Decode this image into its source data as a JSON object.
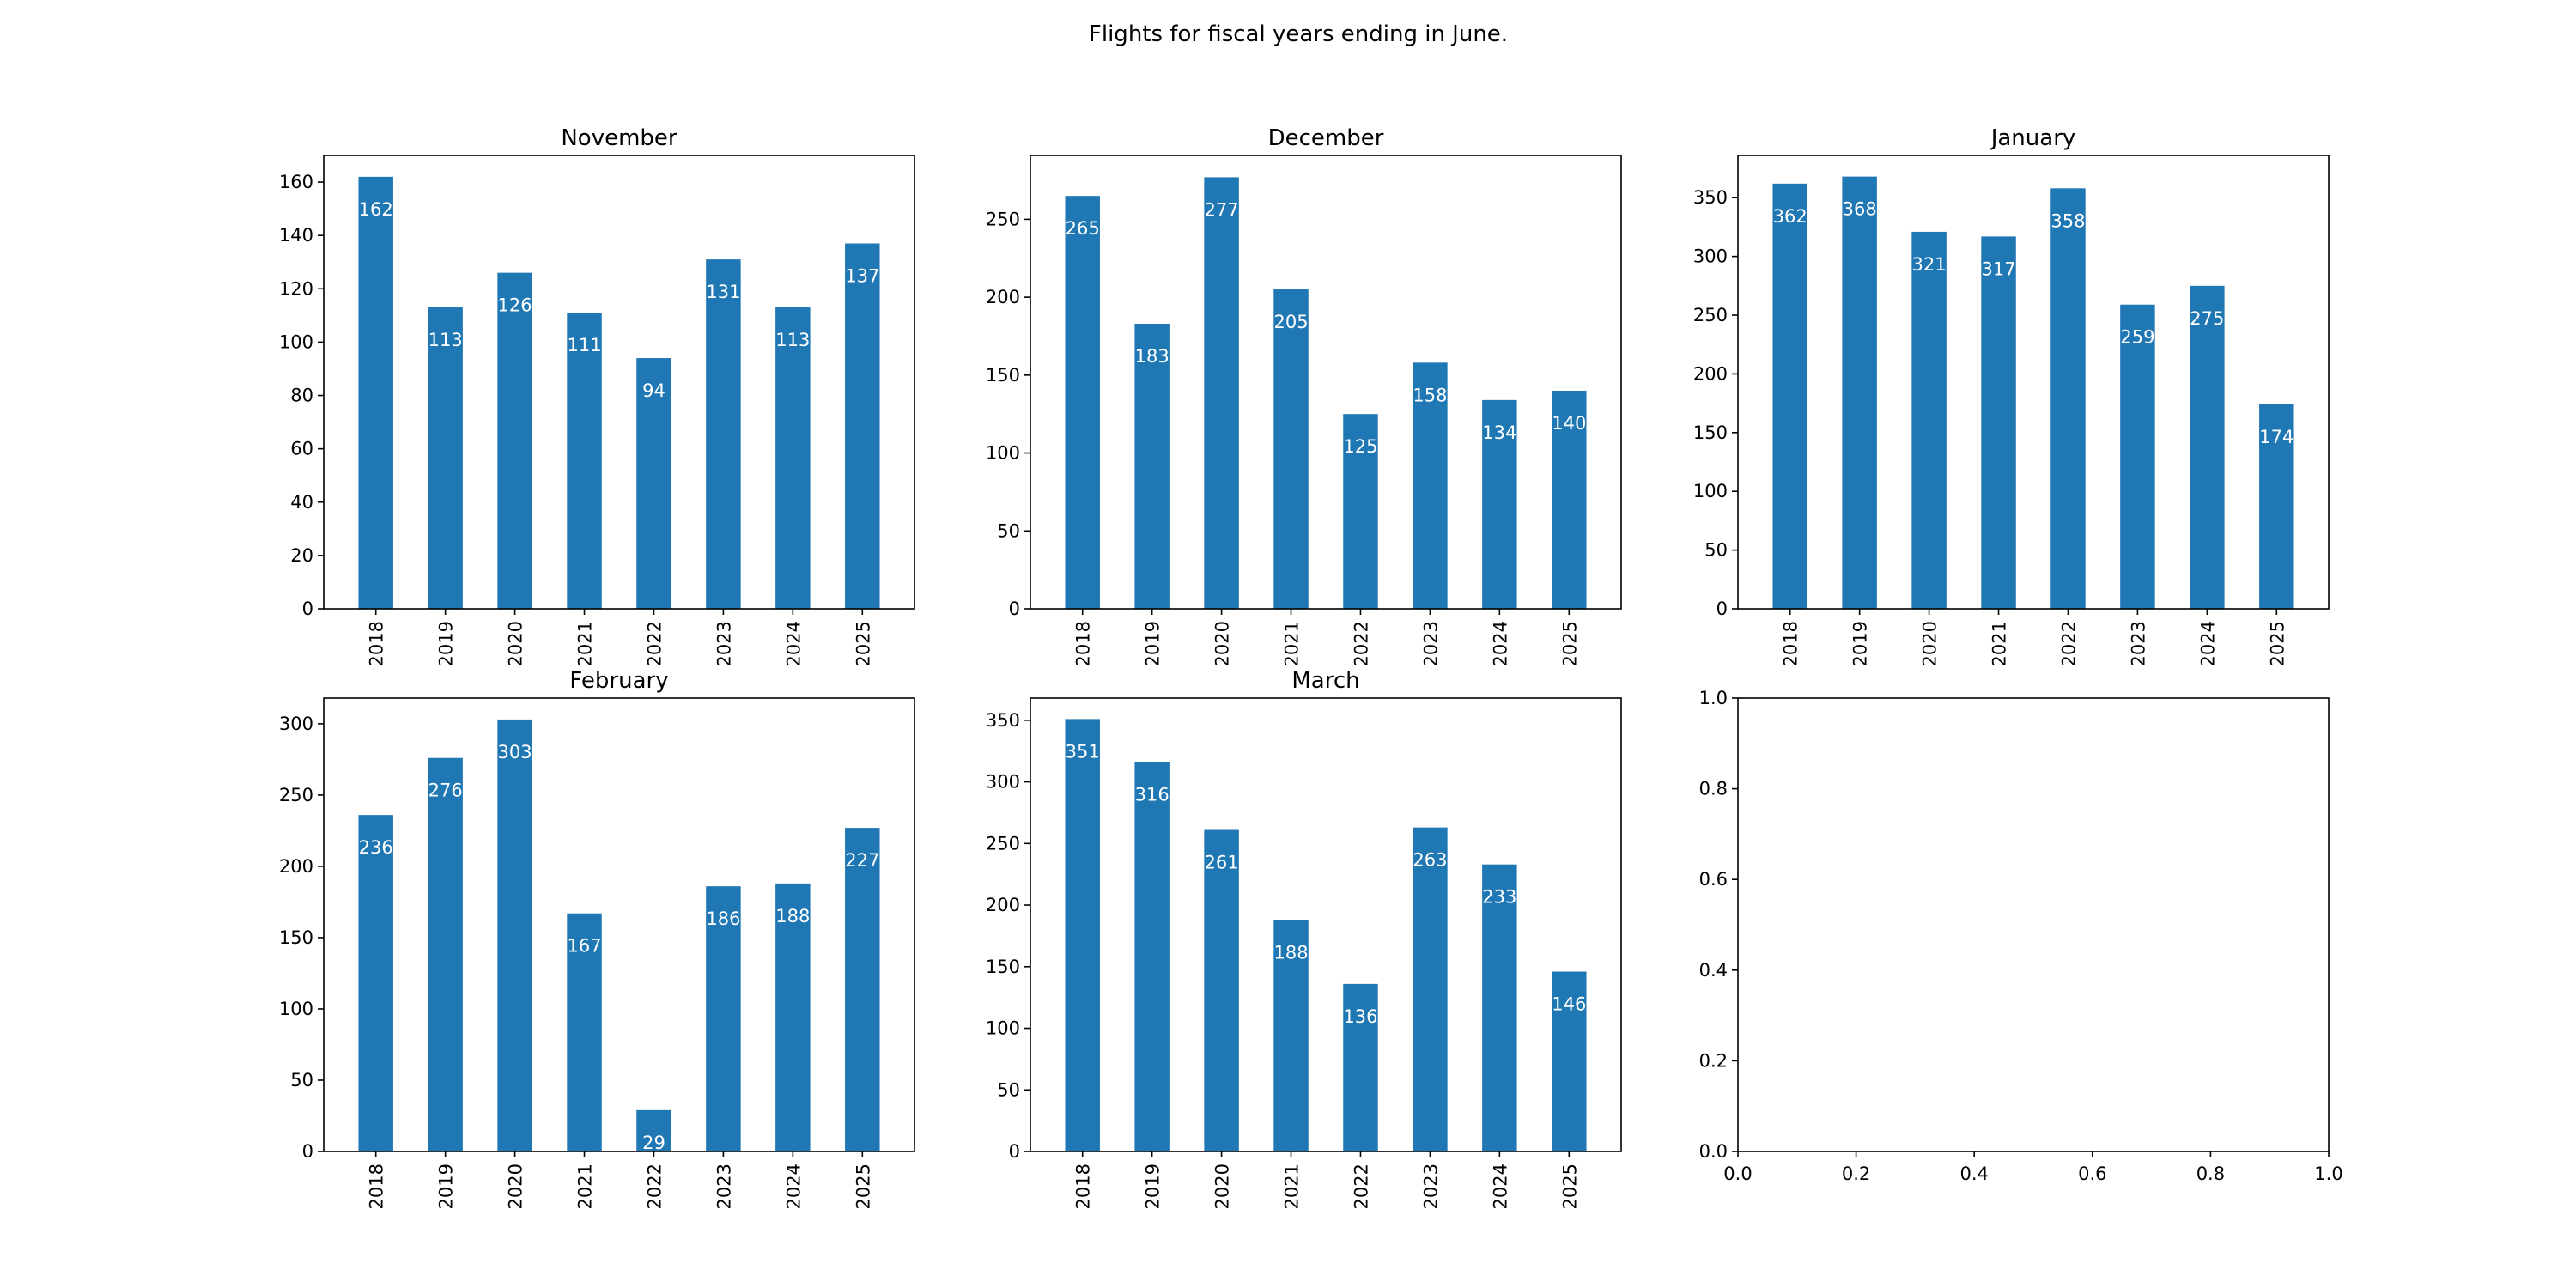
{
  "figure": {
    "title": "Flights for fiscal years ending in June."
  },
  "colors": {
    "bar": "#1f77b4",
    "bar_label": "#ffffff",
    "axis": "#000000",
    "background": "#ffffff"
  },
  "chart_data": [
    {
      "type": "bar",
      "title": "November",
      "categories": [
        "2018",
        "2019",
        "2020",
        "2021",
        "2022",
        "2023",
        "2024",
        "2025"
      ],
      "values": [
        162,
        113,
        126,
        111,
        94,
        131,
        113,
        137
      ],
      "ylim": [
        0,
        170
      ],
      "yticks": [
        0,
        20,
        40,
        60,
        80,
        100,
        120,
        140,
        160
      ],
      "xlabel": "",
      "ylabel": "",
      "grid": false
    },
    {
      "type": "bar",
      "title": "December",
      "categories": [
        "2018",
        "2019",
        "2020",
        "2021",
        "2022",
        "2023",
        "2024",
        "2025"
      ],
      "values": [
        265,
        183,
        277,
        205,
        125,
        158,
        134,
        140
      ],
      "ylim": [
        0,
        291
      ],
      "yticks": [
        0,
        50,
        100,
        150,
        200,
        250
      ],
      "xlabel": "",
      "ylabel": "",
      "grid": false
    },
    {
      "type": "bar",
      "title": "January",
      "categories": [
        "2018",
        "2019",
        "2020",
        "2021",
        "2022",
        "2023",
        "2024",
        "2025"
      ],
      "values": [
        362,
        368,
        321,
        317,
        358,
        259,
        275,
        174
      ],
      "ylim": [
        0,
        386
      ],
      "yticks": [
        0,
        50,
        100,
        150,
        200,
        250,
        300,
        350
      ],
      "xlabel": "",
      "ylabel": "",
      "grid": false
    },
    {
      "type": "bar",
      "title": "February",
      "categories": [
        "2018",
        "2019",
        "2020",
        "2021",
        "2022",
        "2023",
        "2024",
        "2025"
      ],
      "values": [
        236,
        276,
        303,
        167,
        29,
        186,
        188,
        227
      ],
      "ylim": [
        0,
        318
      ],
      "yticks": [
        0,
        50,
        100,
        150,
        200,
        250,
        300
      ],
      "xlabel": "",
      "ylabel": "",
      "grid": false
    },
    {
      "type": "bar",
      "title": "March",
      "categories": [
        "2018",
        "2019",
        "2020",
        "2021",
        "2022",
        "2023",
        "2024",
        "2025"
      ],
      "values": [
        351,
        316,
        261,
        188,
        136,
        263,
        233,
        146
      ],
      "ylim": [
        0,
        368
      ],
      "yticks": [
        0,
        50,
        100,
        150,
        200,
        250,
        300,
        350
      ],
      "xlabel": "",
      "ylabel": "",
      "grid": false
    },
    {
      "type": "empty",
      "title": "",
      "categories": [],
      "values": [],
      "xlim": [
        0,
        1
      ],
      "ylim": [
        0,
        1
      ],
      "xticks": [
        "0.0",
        "0.2",
        "0.4",
        "0.6",
        "0.8",
        "1.0"
      ],
      "yticks": [
        "0.0",
        "0.2",
        "0.4",
        "0.6",
        "0.8",
        "1.0"
      ],
      "grid": false
    }
  ]
}
